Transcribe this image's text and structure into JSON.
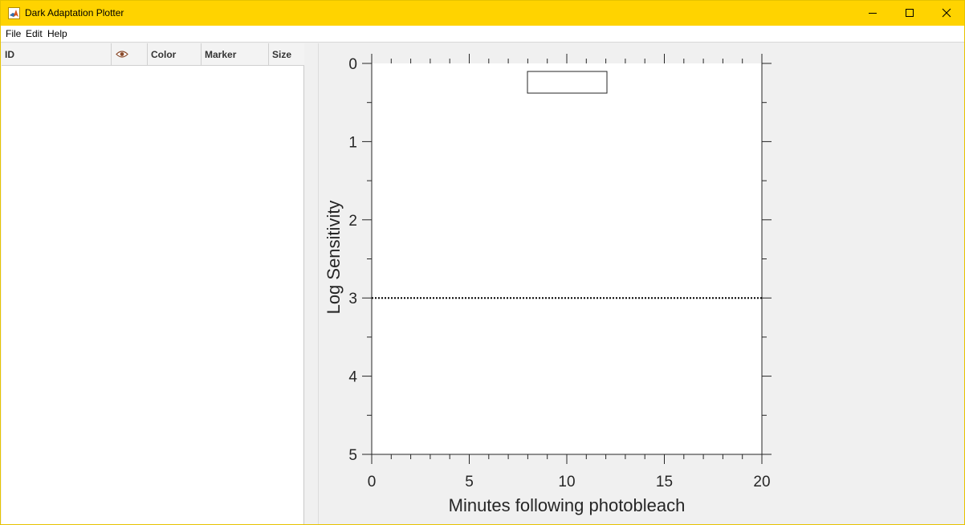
{
  "window": {
    "title": "Dark Adaptation Plotter",
    "accent_color": "#ffd300"
  },
  "menubar": {
    "items": [
      "File",
      "Edit",
      "Help"
    ]
  },
  "table": {
    "columns": [
      "ID",
      "eye-icon",
      "Color",
      "Marker",
      "Size"
    ],
    "rows": []
  },
  "chart_data": {
    "type": "line",
    "xlabel": "Minutes following photobleach",
    "ylabel": "Log Sensitivity",
    "xlim": [
      0,
      20
    ],
    "ylim": [
      0,
      5
    ],
    "y_reversed": true,
    "xticks": [
      "0",
      "5",
      "10",
      "15",
      "20"
    ],
    "yticks": [
      "0",
      "1",
      "2",
      "3",
      "4",
      "5"
    ],
    "grid": false,
    "legend": "top-center",
    "legend_entries": [],
    "reference_line": {
      "y": 3,
      "style": "dotted"
    },
    "series": []
  }
}
